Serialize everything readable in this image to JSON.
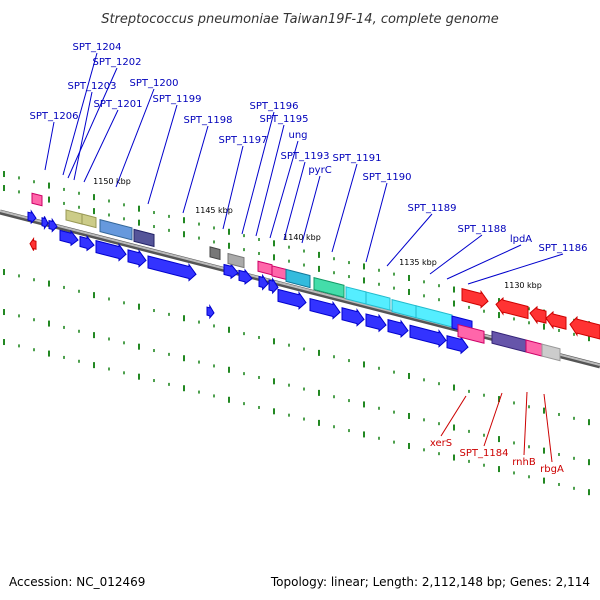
{
  "title": "Streptococcus pneumoniae Taiwan19F-14, complete genome",
  "footer": {
    "accession": "Accession: NC_012469",
    "summary": "Topology: linear; Length: 2,112,148 bp; Genes: 2,114"
  },
  "ruler_labels": [
    "1150 kbp",
    "1145 kbp",
    "1140 kbp",
    "1135 kbp",
    "1130 kbp"
  ],
  "labels_forward": [
    "SPT_1204",
    "SPT_1202",
    "SPT_1203",
    "SPT_1201",
    "SPT_1206",
    "SPT_1200",
    "SPT_1199",
    "SPT_1198",
    "SPT_1197",
    "SPT_1196",
    "SPT_1195",
    "ung",
    "SPT_1193",
    "pyrC",
    "SPT_1191",
    "SPT_1190",
    "SPT_1189",
    "SPT_1188",
    "lpdA",
    "SPT_1186"
  ],
  "labels_reverse": [
    "xerS",
    "SPT_1184",
    "rnhB",
    "rbgA"
  ],
  "colors": {
    "strand_forward": "#0000ee",
    "strand_reverse": "#ee0000",
    "backbone": "#888888",
    "tick": "#228822"
  }
}
